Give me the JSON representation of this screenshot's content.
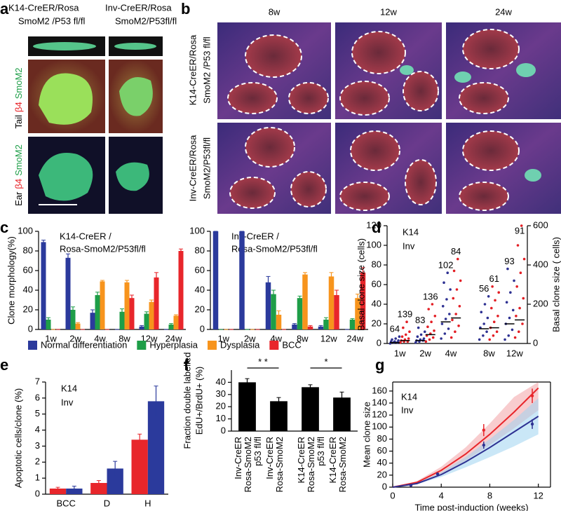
{
  "labels": [
    "a",
    "b",
    "c",
    "d",
    "e",
    "f",
    "g"
  ],
  "panel_a": {
    "columns": [
      [
        "K14-CreER/Rosa",
        "SmoM2 /P53 fl/fl"
      ],
      [
        "Inv-CreER/Rosa",
        "SmoM2/P53fl/fl"
      ]
    ],
    "rows": [
      [
        "Tail",
        "β4",
        "SmoM2"
      ],
      [
        "Ear",
        "β4",
        "SmoM2"
      ]
    ]
  },
  "panel_b": {
    "columns": [
      "8w",
      "12w",
      "24w"
    ],
    "rows": [
      [
        "K14-CreER/Rosa",
        "SmoM2 /P53 fl/fl"
      ],
      [
        "Inv-CreER/Rosa",
        "SmoM2/P53fl/fl"
      ]
    ]
  },
  "chart_data": [
    {
      "type": "bar",
      "title": [
        "K14-CreER /",
        "Rosa-SmoM2/P53fl/fl"
      ],
      "ylabel": "Clone morphology(%)",
      "categories": [
        "1w",
        "2w",
        "4w",
        "8w",
        "12w",
        "24w"
      ],
      "series": [
        {
          "name": "Normal differentiation",
          "color": "#2b3a9c",
          "values": [
            89,
            73,
            17,
            0,
            3,
            0
          ],
          "errors": [
            2,
            4,
            3,
            0,
            1,
            0
          ]
        },
        {
          "name": "Hyperplasia",
          "color": "#1e9e48",
          "values": [
            10,
            20,
            35,
            18,
            16,
            5
          ],
          "errors": [
            2,
            3,
            3,
            3,
            2,
            1
          ]
        },
        {
          "name": "Dysplasia",
          "color": "#f7941d",
          "values": [
            0,
            6,
            49,
            48,
            28,
            14
          ],
          "errors": [
            0,
            1,
            1,
            2,
            2,
            1
          ]
        },
        {
          "name": "BCC",
          "color": "#e8262b",
          "values": [
            0,
            0,
            0,
            32,
            53,
            80
          ],
          "errors": [
            0,
            0,
            0,
            3,
            5,
            2
          ]
        }
      ],
      "ylim": [
        0,
        100
      ],
      "yticks": [
        0,
        20,
        40,
        60,
        80,
        100
      ]
    },
    {
      "type": "bar",
      "title": [
        "Inv-CreER /",
        "Rosa-SmoM2/P53fl/fl"
      ],
      "categories": [
        "1w",
        "2w",
        "4w",
        "8w",
        "12w",
        "24w"
      ],
      "series": [
        {
          "color": "#2b3a9c",
          "values": [
            100,
            100,
            48,
            5,
            3,
            0
          ],
          "errors": [
            0,
            0,
            6,
            1,
            1,
            0
          ]
        },
        {
          "color": "#1e9e48",
          "values": [
            0,
            0,
            36,
            32,
            10,
            10
          ],
          "errors": [
            0,
            0,
            4,
            2,
            2,
            1
          ]
        },
        {
          "color": "#f7941d",
          "values": [
            0,
            0,
            15,
            56,
            54,
            32
          ],
          "errors": [
            0,
            0,
            4,
            2,
            4,
            4
          ]
        },
        {
          "color": "#e8262b",
          "values": [
            0,
            0,
            0,
            3,
            35,
            58
          ],
          "errors": [
            0,
            0,
            0,
            1,
            5,
            5
          ]
        }
      ],
      "ylim": [
        0,
        100
      ],
      "yticks": [
        0,
        20,
        40,
        60,
        80,
        100
      ]
    },
    {
      "type": "strip",
      "ylabel": "Basal clone size (cells)",
      "y2label": "Basal clone size ( cells)",
      "categories": [
        "1w",
        "2w",
        "4w",
        "8w",
        "12w"
      ],
      "on_y2": [
        false,
        false,
        false,
        true,
        true
      ],
      "ylim": [
        0,
        120
      ],
      "yticks": [
        0,
        20,
        40,
        60,
        80,
        100,
        120
      ],
      "y2lim": [
        0,
        600
      ],
      "y2ticks": [
        0,
        200,
        400,
        600
      ],
      "series": [
        {
          "name": "K14",
          "color": "#e31e24",
          "counts": [
            139,
            136,
            84,
            61,
            91
          ],
          "medians": [
            3,
            9,
            26,
            80,
            120
          ],
          "points": [
            [
              1,
              2,
              2,
              3,
              4,
              5,
              7,
              9,
              12,
              16,
              22
            ],
            [
              2,
              4,
              6,
              8,
              10,
              13,
              17,
              22,
              28,
              35,
              40
            ],
            [
              6,
              12,
              18,
              24,
              30,
              38,
              46,
              55,
              64,
              74,
              86
            ],
            [
              20,
              40,
              60,
              80,
              110,
              140,
              180,
              220,
              260,
              290
            ],
            [
              30,
              60,
              100,
              140,
              180,
              230,
              290,
              360,
              430,
              500,
              600
            ]
          ]
        },
        {
          "name": "Inv",
          "color": "#2e3192",
          "counts": [
            64,
            83,
            102,
            56,
            93
          ],
          "medians": [
            1,
            3,
            22,
            75,
            100
          ],
          "points": [
            [
              0,
              1,
              1,
              2,
              2,
              3,
              4,
              5,
              7
            ],
            [
              1,
              2,
              3,
              3,
              4,
              5,
              7,
              9,
              12,
              16
            ],
            [
              5,
              10,
              15,
              20,
              25,
              30,
              38,
              45,
              55,
              62,
              72
            ],
            [
              20,
              40,
              60,
              80,
              100,
              130,
              160,
              200,
              240
            ],
            [
              20,
              40,
              70,
              100,
              130,
              170,
              210,
              260,
              320,
              380
            ]
          ]
        }
      ]
    },
    {
      "type": "bar",
      "ylabel": "Apoptotic cells/clone (%)",
      "categories": [
        "BCC",
        "D",
        "H"
      ],
      "series": [
        {
          "name": "K14",
          "color": "#e8262b",
          "values": [
            0.35,
            0.7,
            3.4
          ],
          "errors": [
            0.08,
            0.15,
            0.35
          ]
        },
        {
          "name": "Inv",
          "color": "#2b3a9c",
          "values": [
            0.35,
            1.6,
            5.8
          ],
          "errors": [
            0.15,
            0.45,
            0.95
          ]
        }
      ],
      "ylim": [
        0,
        7
      ],
      "yticks": [
        0,
        1,
        2,
        3,
        4,
        5,
        6,
        7
      ]
    },
    {
      "type": "bar",
      "ylabel": [
        "Fraction double labelled",
        "EdU+/BrdU+ (%)"
      ],
      "categories": [
        [
          "Inv-CreER",
          "Rosa-SmoM2",
          "p53 fl/fl"
        ],
        [
          "Inv-CreER",
          "Rosa-SmoM2"
        ],
        [
          "K14-CreER",
          "Rosa-SmoM2",
          "p53 fl/fl"
        ],
        [
          "K14-CreER",
          "Rosa-SmoM2"
        ]
      ],
      "values": [
        40,
        24.5,
        36,
        27.5
      ],
      "errors": [
        3,
        3,
        2,
        4.5
      ],
      "color": "#000000",
      "ylim": [
        0,
        50
      ],
      "yticks": [
        0,
        10,
        20,
        30,
        40
      ],
      "significance": [
        {
          "label": "* *",
          "between": [
            0,
            1
          ]
        },
        {
          "label": "*",
          "between": [
            2,
            3
          ]
        }
      ]
    },
    {
      "type": "line",
      "xlabel": "Time post-induction (weeks)",
      "ylabel": "Mean clone size",
      "xlim": [
        0,
        13
      ],
      "xticks": [
        0,
        4,
        8,
        12
      ],
      "ylim": [
        0,
        175
      ],
      "yticks": [
        0,
        20,
        40,
        60,
        80,
        100,
        120,
        140,
        160
      ],
      "series": [
        {
          "name": "K14",
          "color": "#e8262b",
          "band_color": "#f2a3a6",
          "x": [
            0,
            2,
            4,
            6,
            8,
            10,
            12
          ],
          "values": [
            0,
            8,
            28,
            55,
            88,
            125,
            165
          ],
          "lower": [
            0,
            6,
            22,
            44,
            70,
            98,
            128
          ],
          "upper": [
            0,
            10,
            34,
            66,
            106,
            150,
            175
          ],
          "points_x": [
            1.5,
            3.7,
            7.5,
            11.5
          ],
          "points": [
            3,
            22,
            95,
            152
          ],
          "point_errors": [
            1,
            3,
            10,
            12
          ]
        },
        {
          "name": "Inv",
          "color": "#2e3192",
          "band_color": "#9fd3f0",
          "x": [
            0,
            2,
            4,
            6,
            8,
            10,
            12
          ],
          "values": [
            0,
            6,
            21,
            42,
            66,
            92,
            118
          ],
          "lower": [
            0,
            5,
            17,
            33,
            50,
            68,
            88
          ],
          "upper": [
            0,
            7,
            25,
            50,
            80,
            112,
            148
          ],
          "points_x": [
            1.5,
            3.7,
            7.5,
            11.5
          ],
          "points": [
            3,
            22,
            70,
            105
          ],
          "point_errors": [
            1,
            2,
            6,
            8
          ]
        }
      ]
    }
  ]
}
